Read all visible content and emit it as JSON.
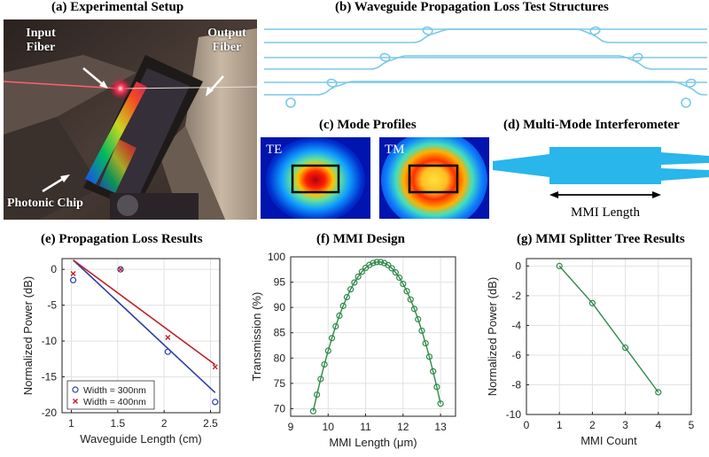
{
  "titles": {
    "a": "(a) Experimental Setup",
    "b": "(b) Waveguide Propagation Loss Test Structures",
    "c": "(c) Mode Profiles",
    "d": "(d) Multi-Mode Interferometer",
    "e": "(e) Propagation Loss Results",
    "f": "(f) MMI Design",
    "g": "(g) MMI Splitter Tree Results"
  },
  "photo_labels": {
    "input_fiber": "Input Fiber",
    "output_fiber": "Output Fiber",
    "photonic_chip": "Photonic Chip"
  },
  "mode_labels": {
    "te": "TE",
    "tm": "TM"
  },
  "mmi_length_label": "MMI Length",
  "colors": {
    "waveguide": "#7cc8e8",
    "mmi": "#29b6ea",
    "blue_series": "#2b3fa8",
    "red_series": "#c0202a",
    "green_series": "#2f8a4a"
  },
  "chart_data": [
    {
      "id": "e",
      "type": "scatter",
      "xlabel": "Waveguide Length (cm)",
      "ylabel": "Normalized Power (dB)",
      "xlim": [
        0.9,
        2.6
      ],
      "ylim": [
        -20,
        1.5
      ],
      "xticks": [
        1,
        1.5,
        2,
        2.5
      ],
      "yticks": [
        0,
        -5,
        -10,
        -15,
        -20
      ],
      "grid": true,
      "legend": "bottom-left",
      "series": [
        {
          "name": "Width = 300nm",
          "marker": "circle",
          "color": "#2b3fa8",
          "x": [
            1.02,
            1.53,
            2.04,
            2.55
          ],
          "y": [
            -1.5,
            0,
            -11.5,
            -18.5
          ],
          "fit": [
            [
              1.02,
              1.3
            ],
            [
              2.55,
              -17.2
            ]
          ]
        },
        {
          "name": "Width = 400nm",
          "marker": "x",
          "color": "#c0202a",
          "x": [
            1.02,
            1.53,
            2.04,
            2.55
          ],
          "y": [
            -0.6,
            0,
            -9.5,
            -13.6
          ],
          "fit": [
            [
              1.02,
              1.3
            ],
            [
              2.55,
              -13.3
            ]
          ]
        }
      ]
    },
    {
      "id": "f",
      "type": "line",
      "xlabel": "MMI Length (μm)",
      "ylabel": "Transmission (%)",
      "xlim": [
        9,
        13.4
      ],
      "ylim": [
        68.5,
        100
      ],
      "xticks": [
        9,
        10,
        11,
        12,
        13
      ],
      "yticks": [
        70,
        75,
        80,
        85,
        90,
        95,
        100
      ],
      "grid": true,
      "series": [
        {
          "marker": "circle",
          "color": "#2f8a4a",
          "peak_x": 11.35,
          "peak_y": 99,
          "x_start": 9.6,
          "x_end": 13.0,
          "n_points": 35,
          "end_y_left": 69.5,
          "end_y_right": 71
        }
      ]
    },
    {
      "id": "g",
      "type": "line",
      "xlabel": "MMI Count",
      "ylabel": "Normalized Power (dB)",
      "xlim": [
        0,
        5
      ],
      "ylim": [
        -10,
        0.5
      ],
      "xticks": [
        0,
        1,
        2,
        3,
        4,
        5
      ],
      "yticks": [
        0,
        -2,
        -4,
        -6,
        -8,
        -10
      ],
      "grid": true,
      "series": [
        {
          "marker": "circle",
          "color": "#2f8a4a",
          "x": [
            1,
            2,
            3,
            4
          ],
          "y": [
            0,
            -2.5,
            -5.5,
            -8.5
          ]
        }
      ]
    }
  ]
}
